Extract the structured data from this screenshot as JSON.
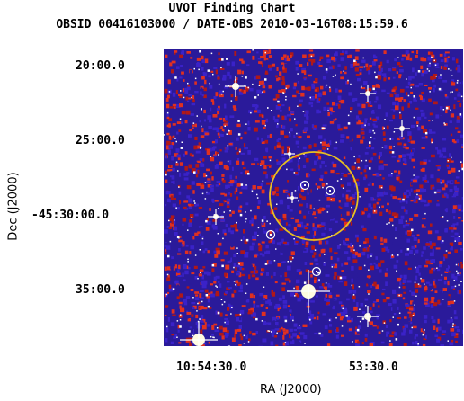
{
  "header": {
    "title": "UVOT Finding Chart",
    "subtitle": "OBSID 00416103000 / DATE-OBS 2010-03-16T08:15:59.6"
  },
  "axes": {
    "xlabel": "RA (J2000)",
    "ylabel": "Dec (J2000)",
    "x_ticks": [
      "10:54:30.0",
      "53:30.0"
    ],
    "y_ticks": [
      "20:00.0",
      "25:00.0",
      "-45:30:00.0",
      "35:00.0"
    ]
  },
  "image": {
    "colors": {
      "background": "#2a1a9a",
      "noise_a": "#3a22c8",
      "noise_b": "#b01818",
      "noise_c": "#e03020",
      "star": "#ffffff",
      "error_circle": "#e8c020"
    }
  }
}
